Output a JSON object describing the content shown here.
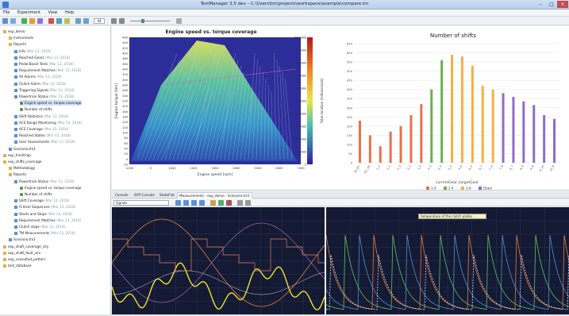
{
  "window": {
    "title": "TestManager 3.5 dev – C:\\Users\\tm\\projects\\workspace\\example\\compare.tm"
  },
  "menu": {
    "items": [
      "File",
      "Experiment",
      "View",
      "Help"
    ]
  },
  "toolbar": {
    "zoom": "44"
  },
  "tree": {
    "nodes": [
      {
        "label": "exp_demo",
        "date": "",
        "level": 0,
        "icon": "folder"
      },
      {
        "label": "Instruments",
        "date": "",
        "level": 1,
        "icon": "folder"
      },
      {
        "label": "Reports",
        "date": "",
        "level": 1,
        "icon": "folder"
      },
      {
        "label": "Info",
        "date": "(Mar 13, 2018)",
        "level": 2,
        "icon": "doc"
      },
      {
        "label": "Reached Gears",
        "date": "(Mar 13, 2018)",
        "level": 2,
        "icon": "doc"
      },
      {
        "label": "Pedal Boost Tests",
        "date": "(Mar 13, 2018)",
        "level": 2,
        "icon": "doc"
      },
      {
        "label": "Requirement Matches",
        "date": "(Mar 13, 2018)",
        "level": 2,
        "icon": "doc"
      },
      {
        "label": "All Alarms",
        "date": "(Mar 13, 2018)",
        "level": 2,
        "icon": "doc"
      },
      {
        "label": "Clutch Alarm",
        "date": "(Mar 13, 2018)",
        "level": 2,
        "icon": "doc"
      },
      {
        "label": "Triggering Signals",
        "date": "(Mar 13, 2018)",
        "level": 2,
        "icon": "doc"
      },
      {
        "label": "Powertrain Status",
        "date": "(Mar 13, 2018)",
        "level": 2,
        "icon": "doc"
      },
      {
        "label": "Engine speed vs. torque coverage",
        "date": "",
        "level": 3,
        "icon": "bullet"
      },
      {
        "label": "Number of shifts",
        "date": "",
        "level": 3,
        "icon": "bullet"
      },
      {
        "label": "Shift Statistics",
        "date": "(Mar 13, 2018)",
        "level": 2,
        "icon": "doc"
      },
      {
        "label": "ACS Range Monitoring",
        "date": "(Mar 13, 2018)",
        "level": 2,
        "icon": "doc"
      },
      {
        "label": "ACS Coverage",
        "date": "(Mar 13, 2018)",
        "level": 2,
        "icon": "doc"
      },
      {
        "label": "Reached States",
        "date": "(Mar 13, 2018)",
        "level": 2,
        "icon": "doc"
      },
      {
        "label": "User Assessments",
        "date": "(Mar 13, 2018)",
        "level": 2,
        "icon": "doc"
      },
      {
        "label": "Scenario.tm1",
        "date": "",
        "level": 1,
        "icon": "doc"
      },
      {
        "label": "exp_freshtrap",
        "date": "",
        "level": 0,
        "icon": "folder"
      },
      {
        "label": "exp_shifts_coverage",
        "date": "",
        "level": 0,
        "icon": "folder"
      },
      {
        "label": "Methodology",
        "date": "",
        "level": 1,
        "icon": "folder"
      },
      {
        "label": "Reports",
        "date": "",
        "level": 1,
        "icon": "folder"
      },
      {
        "label": "Powertrain Status",
        "date": "(Mar 13, 2018)",
        "level": 2,
        "icon": "doc"
      },
      {
        "label": "Engine speed vs. torque coverage",
        "date": "",
        "level": 3,
        "icon": "bullet"
      },
      {
        "label": "Number of shifts",
        "date": "",
        "level": 3,
        "icon": "bullet"
      },
      {
        "label": "Shift Coverage",
        "date": "(Mar 13, 2018)",
        "level": 2,
        "icon": "doc"
      },
      {
        "label": "Critical Sequences",
        "date": "(Mar 13, 2018)",
        "level": 2,
        "icon": "doc"
      },
      {
        "label": "Starts and Stops",
        "date": "(Mar 13, 2018)",
        "level": 2,
        "icon": "doc"
      },
      {
        "label": "Requirement Matches",
        "date": "(Mar 13, 2018)",
        "level": 2,
        "icon": "doc"
      },
      {
        "label": "Clutch slope",
        "date": "(Mar 13, 2018)",
        "level": 2,
        "icon": "doc"
      },
      {
        "label": "TM Measurements",
        "date": "(Mar 13, 2018)",
        "level": 2,
        "icon": "doc"
      },
      {
        "label": "Scenario.tm1",
        "date": "",
        "level": 1,
        "icon": "doc"
      },
      {
        "label": "exp_shaft_coverage_city",
        "date": "",
        "level": 0,
        "icon": "folder"
      },
      {
        "label": "exp_shaft_fault_sim",
        "date": "",
        "level": 0,
        "icon": "folder"
      },
      {
        "label": "exp_consulted_pattern",
        "date": "",
        "level": 0,
        "icon": "folder"
      },
      {
        "label": "test_database",
        "date": "",
        "level": 0,
        "icon": "folder"
      }
    ]
  },
  "heatmap": {
    "title": "Engine speed vs. torque coverage",
    "xlabel": "Engine speed [rpm]",
    "ylabel": "Engine torque [Nm]",
    "cbar_label": "Total duration [milliseconds]",
    "cbar_ticks": [
      "5000000",
      "4500000",
      "4000000",
      "3500000",
      "3000000",
      "2500000",
      "2000000",
      "1500000",
      "1000000",
      "500000",
      "0"
    ],
    "yticks": [
      "460",
      "440",
      "420",
      "400",
      "380",
      "360",
      "340",
      "320",
      "300",
      "280",
      "260",
      "240",
      "220",
      "200",
      "180",
      "160",
      "140",
      "120",
      "100",
      "80",
      "60",
      "40",
      "20",
      "0",
      "-20"
    ],
    "xticks": [
      "-1000",
      "0",
      "1000",
      "2000",
      "3000",
      "4000",
      "5000",
      "6000",
      "7000"
    ]
  },
  "chart_data": {
    "type": "bar",
    "title": "Number of shifts",
    "xlabel": "currentGear_targetGear",
    "ylabel": "",
    "ylim": [
      0,
      650
    ],
    "yticks": [
      "650",
      "600",
      "550",
      "500",
      "450",
      "400",
      "350",
      "300",
      "250",
      "200",
      "150",
      "100",
      "50",
      "0"
    ],
    "categories": [
      "1R_N1",
      "N1_1N",
      "1_2",
      "2_1",
      "2_3",
      "3_2",
      "3_4",
      "4_3",
      "4_5",
      "5_4",
      "5_6",
      "6_5",
      "6_7",
      "7_6",
      "7_8",
      "8_7",
      "8_9",
      "9_8",
      "9_10",
      "10_9"
    ],
    "values": [
      230,
      150,
      90,
      170,
      200,
      260,
      320,
      400,
      560,
      590,
      580,
      530,
      420,
      400,
      380,
      360,
      335,
      315,
      260,
      240
    ],
    "colors": [
      "#e8714a",
      "#e8714a",
      "#e8714a",
      "#e8714a",
      "#e8714a",
      "#e8714a",
      "#e8714a",
      "#6ab04c",
      "#6ab04c",
      "#f5b041",
      "#f5b041",
      "#f5b041",
      "#f5b041",
      "#f5b041",
      "#8e6cc9",
      "#8e6cc9",
      "#8e6cc9",
      "#8e6cc9",
      "#8e6cc9",
      "#8e6cc9"
    ],
    "legend": [
      {
        "name": "1-4",
        "color": "#e8714a"
      },
      {
        "name": "2-4",
        "color": "#6ab04c"
      },
      {
        "name": "3-6",
        "color": "#f5b041"
      },
      {
        "name": "Down",
        "color": "#8e6cc9"
      }
    ]
  },
  "tabs": [
    "Console",
    "SVP Console",
    "StateFlat",
    "Measurements - exp_demo - Scenario.tm1"
  ],
  "scope": {
    "selector": "Signals",
    "tooltip": "temperature of the clutch plates"
  },
  "colors": {
    "accent": "#3a7bd5",
    "scope_bg": "#141a33"
  }
}
